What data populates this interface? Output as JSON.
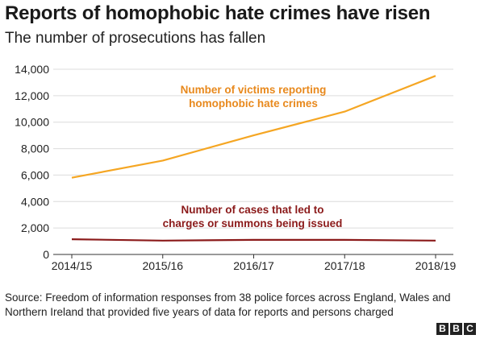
{
  "header": {
    "title": "Reports of homophobic hate crimes have risen",
    "subtitle": "The number of prosecutions has fallen"
  },
  "chart_data": {
    "type": "line",
    "title": "Reports of homophobic hate crimes have risen",
    "subtitle": "The number of prosecutions has fallen",
    "categories": [
      "2014/15",
      "2015/16",
      "2016/17",
      "2017/18",
      "2018/19"
    ],
    "ylim": [
      0,
      14000
    ],
    "yticks": [
      0,
      2000,
      4000,
      6000,
      8000,
      10000,
      12000,
      14000
    ],
    "ytick_labels": [
      "0",
      "2,000",
      "4,000",
      "6,000",
      "8,000",
      "10,000",
      "12,000",
      "14,000"
    ],
    "xlabel": "",
    "ylabel": "",
    "grid": true,
    "series": [
      {
        "name": "Number of victims reporting homophobic hate crimes",
        "label_lines": [
          "Number of victims reporting",
          "homophobic hate crimes"
        ],
        "color": "#f5a623",
        "label_color": "#e8891d",
        "values": [
          5800,
          7100,
          9000,
          10800,
          13500
        ]
      },
      {
        "name": "Number of cases that led to charges or summons being issued",
        "label_lines": [
          "Number of cases that led to",
          "charges or summons being issued"
        ],
        "color": "#8b1a1a",
        "label_color": "#8b1a1a",
        "values": [
          1150,
          1050,
          1100,
          1100,
          1050
        ]
      }
    ]
  },
  "footer": {
    "source": "Source: Freedom of information responses from 38 police forces across England, Wales and Northern Ireland that provided five years of data for reports and persons charged",
    "logo_letters": [
      "B",
      "B",
      "C"
    ]
  }
}
